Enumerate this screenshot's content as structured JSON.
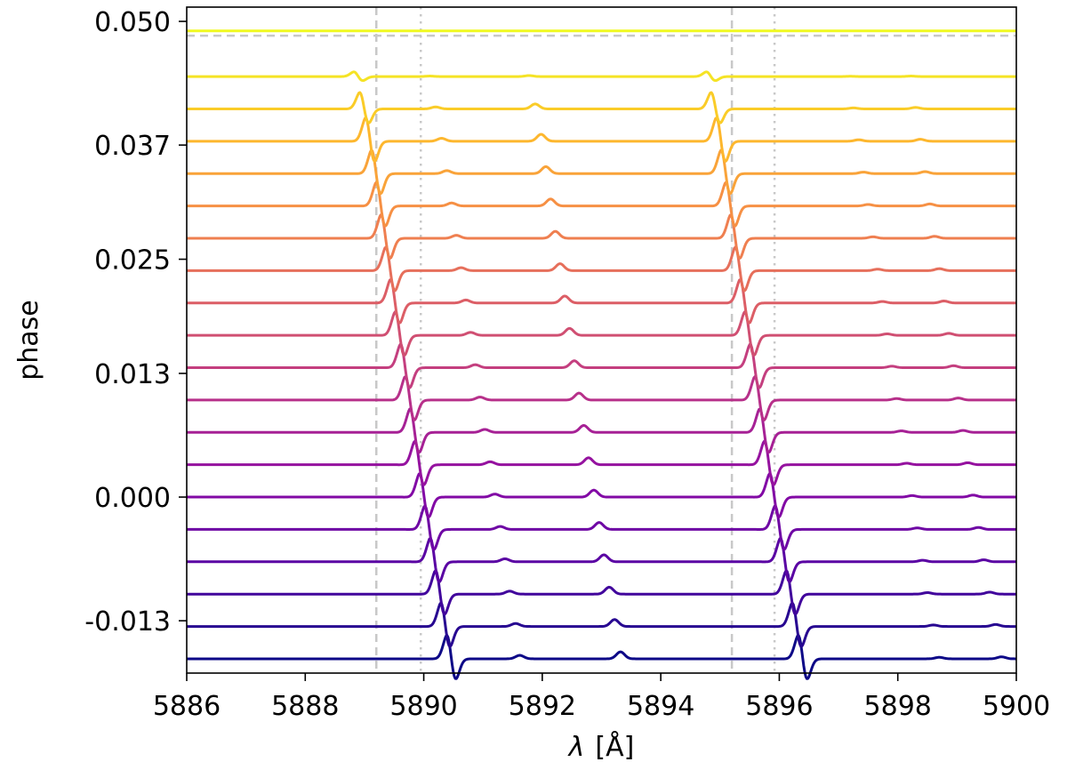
{
  "chart_data": {
    "type": "line",
    "title": "",
    "xlabel_var": "λ",
    "xlabel_unit": "[Å]",
    "ylabel": "phase",
    "xlim": [
      5886,
      5900
    ],
    "x_ticks": [
      5886,
      5888,
      5890,
      5892,
      5894,
      5896,
      5898,
      5900
    ],
    "x_tick_labels": [
      "5886",
      "5888",
      "5890",
      "5892",
      "5894",
      "5896",
      "5898",
      "5900"
    ],
    "ylim": [
      -0.0185,
      0.0515
    ],
    "y_ticks": [
      -0.013,
      0.0,
      0.013,
      0.025,
      0.037,
      0.05
    ],
    "y_tick_labels": [
      "-0.013",
      "0.000",
      "0.013",
      "0.025",
      "0.037",
      "0.050"
    ],
    "grid": false,
    "legend": "none",
    "vlines": [
      {
        "x": 5889.2,
        "style": "dashed",
        "color": "#c8c8c8"
      },
      {
        "x": 5889.95,
        "style": "dotted",
        "color": "#c8c8c8"
      },
      {
        "x": 5895.2,
        "style": "dashed",
        "color": "#c8c8c8"
      },
      {
        "x": 5895.92,
        "style": "dotted",
        "color": "#c8c8c8"
      }
    ],
    "hlines": [
      {
        "y": 0.0485,
        "style": "dashed",
        "color": "#c8c8c8"
      }
    ],
    "colormap_endpoints": [
      "#0d0887",
      "#f0f921"
    ],
    "series": [
      {
        "phase": -0.017,
        "features": [
          [
            5890.42,
            -1
          ],
          [
            5891.62,
            0.35
          ],
          [
            5893.32,
            0.7
          ],
          [
            5896.35,
            -1
          ],
          [
            5898.7,
            0.15
          ],
          [
            5899.75,
            0.2
          ]
        ]
      },
      {
        "phase": -0.0136,
        "features": [
          [
            5890.32,
            -1
          ],
          [
            5891.55,
            0.3
          ],
          [
            5893.22,
            0.7
          ],
          [
            5896.25,
            -1
          ],
          [
            5898.6,
            0.15
          ],
          [
            5899.65,
            0.2
          ]
        ]
      },
      {
        "phase": -0.0102,
        "features": [
          [
            5890.23,
            -1
          ],
          [
            5891.45,
            0.3
          ],
          [
            5893.13,
            0.7
          ],
          [
            5896.15,
            -1
          ],
          [
            5898.5,
            0.15
          ],
          [
            5899.55,
            0.2
          ]
        ]
      },
      {
        "phase": -0.0068,
        "features": [
          [
            5890.14,
            -1
          ],
          [
            5891.37,
            0.3
          ],
          [
            5893.04,
            0.7
          ],
          [
            5896.05,
            -1
          ],
          [
            5898.42,
            0.15
          ],
          [
            5899.45,
            0.2
          ]
        ]
      },
      {
        "phase": -0.0034,
        "features": [
          [
            5890.05,
            -1
          ],
          [
            5891.29,
            0.3
          ],
          [
            5892.96,
            0.7
          ],
          [
            5895.96,
            -1
          ],
          [
            5898.33,
            0.15
          ],
          [
            5899.36,
            0.2
          ]
        ]
      },
      {
        "phase": 0.0,
        "features": [
          [
            5889.96,
            -1
          ],
          [
            5891.2,
            0.3
          ],
          [
            5892.87,
            0.7
          ],
          [
            5895.87,
            -1
          ],
          [
            5898.24,
            0.15
          ],
          [
            5899.27,
            0.2
          ]
        ]
      },
      {
        "phase": 0.0034,
        "features": [
          [
            5889.88,
            -1
          ],
          [
            5891.12,
            0.3
          ],
          [
            5892.78,
            0.7
          ],
          [
            5895.78,
            -1
          ],
          [
            5898.15,
            0.15
          ],
          [
            5899.18,
            0.2
          ]
        ]
      },
      {
        "phase": 0.0068,
        "features": [
          [
            5889.8,
            -1
          ],
          [
            5891.03,
            0.3
          ],
          [
            5892.7,
            0.7
          ],
          [
            5895.7,
            -1
          ],
          [
            5898.06,
            0.15
          ],
          [
            5899.1,
            0.2
          ]
        ]
      },
      {
        "phase": 0.0102,
        "features": [
          [
            5889.72,
            -1
          ],
          [
            5890.95,
            0.3
          ],
          [
            5892.62,
            0.7
          ],
          [
            5895.62,
            -1
          ],
          [
            5897.98,
            0.15
          ],
          [
            5899.02,
            0.2
          ]
        ]
      },
      {
        "phase": 0.0136,
        "features": [
          [
            5889.64,
            -1
          ],
          [
            5890.87,
            0.3
          ],
          [
            5892.54,
            0.7
          ],
          [
            5895.54,
            -1
          ],
          [
            5897.9,
            0.15
          ],
          [
            5898.94,
            0.2
          ]
        ]
      },
      {
        "phase": 0.017,
        "features": [
          [
            5889.55,
            -1
          ],
          [
            5890.79,
            0.3
          ],
          [
            5892.46,
            0.7
          ],
          [
            5895.45,
            -1
          ],
          [
            5897.82,
            0.15
          ],
          [
            5898.86,
            0.2
          ]
        ]
      },
      {
        "phase": 0.0204,
        "features": [
          [
            5889.47,
            -1
          ],
          [
            5890.71,
            0.3
          ],
          [
            5892.38,
            0.7
          ],
          [
            5895.37,
            -1
          ],
          [
            5897.74,
            0.15
          ],
          [
            5898.78,
            0.2
          ]
        ]
      },
      {
        "phase": 0.0238,
        "features": [
          [
            5889.39,
            -1
          ],
          [
            5890.63,
            0.3
          ],
          [
            5892.3,
            0.7
          ],
          [
            5895.29,
            -1
          ],
          [
            5897.66,
            0.15
          ],
          [
            5898.7,
            0.2
          ]
        ]
      },
      {
        "phase": 0.0272,
        "features": [
          [
            5889.31,
            -1
          ],
          [
            5890.55,
            0.3
          ],
          [
            5892.22,
            0.7
          ],
          [
            5895.21,
            -1
          ],
          [
            5897.58,
            0.15
          ],
          [
            5898.62,
            0.2
          ]
        ]
      },
      {
        "phase": 0.0306,
        "features": [
          [
            5889.23,
            -1
          ],
          [
            5890.47,
            0.3
          ],
          [
            5892.14,
            0.7
          ],
          [
            5895.13,
            -1
          ],
          [
            5897.5,
            0.15
          ],
          [
            5898.54,
            0.2
          ]
        ]
      },
      {
        "phase": 0.034,
        "features": [
          [
            5889.15,
            -1
          ],
          [
            5890.39,
            0.3
          ],
          [
            5892.06,
            0.7
          ],
          [
            5895.05,
            -1
          ],
          [
            5897.42,
            0.15
          ],
          [
            5898.46,
            0.2
          ]
        ]
      },
      {
        "phase": 0.0374,
        "features": [
          [
            5889.05,
            -1
          ],
          [
            5890.3,
            0.3
          ],
          [
            5891.98,
            0.7
          ],
          [
            5894.97,
            -1
          ],
          [
            5897.34,
            0.15
          ],
          [
            5898.38,
            0.2
          ]
        ]
      },
      {
        "phase": 0.0408,
        "features": [
          [
            5888.95,
            -0.7
          ],
          [
            5890.2,
            0.2
          ],
          [
            5891.88,
            0.5
          ],
          [
            5894.88,
            -0.7
          ],
          [
            5897.25,
            0.1
          ],
          [
            5898.3,
            0.15
          ]
        ]
      },
      {
        "phase": 0.0442,
        "features": [
          [
            5888.85,
            -0.2
          ],
          [
            5890.1,
            0.05
          ],
          [
            5891.78,
            0.1
          ],
          [
            5894.8,
            -0.2
          ],
          [
            5897.2,
            0.03
          ],
          [
            5898.22,
            0.05
          ]
        ]
      },
      {
        "phase": 0.049,
        "features": []
      }
    ]
  }
}
